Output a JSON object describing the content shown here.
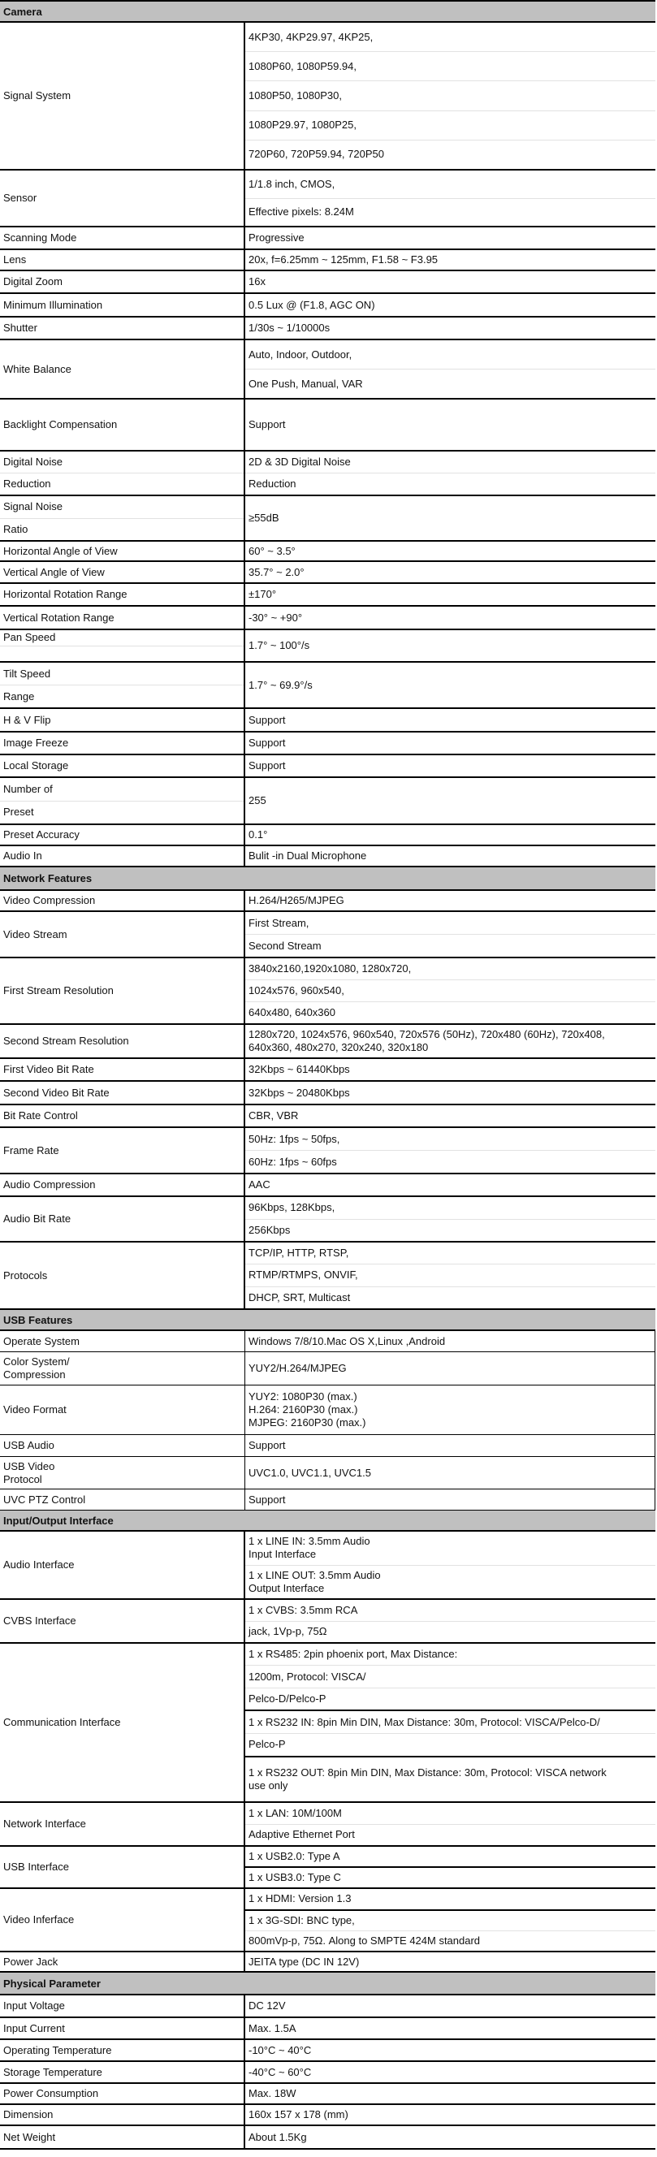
{
  "colors": {
    "section_header_bg": "#c0c0c0",
    "border": "#000000",
    "inner_divider": "#e2e2e2"
  },
  "sections": [
    {
      "title": "Camera",
      "rows": [
        {
          "label": [
            "Signal System"
          ],
          "value": [
            [
              "4KP30, 4KP29.97, 4KP25,",
              "1080P60, 1080P59.94,",
              "1080P50, 1080P30,",
              "1080P29.97, 1080P25,",
              "720P60, 720P59.94, 720P50"
            ]
          ]
        },
        {
          "label": [
            "Sensor"
          ],
          "value": [
            [
              "1/1.8 inch, CMOS,",
              "Effective pixels: 8.24M"
            ]
          ]
        },
        {
          "label": [
            "Scanning Mode"
          ],
          "value": [
            [
              "Progressive"
            ]
          ]
        },
        {
          "label": [
            "Lens"
          ],
          "value": [
            [
              "20x, f=6.25mm ~ 125mm, F1.58 ~ F3.95"
            ]
          ]
        },
        {
          "label": [
            "Digital Zoom"
          ],
          "value": [
            [
              "16x"
            ]
          ]
        },
        {
          "label": [
            "Minimum Illumination"
          ],
          "value": [
            [
              "0.5 Lux @ (F1.8, AGC ON)"
            ]
          ]
        },
        {
          "label": [
            "Shutter"
          ],
          "value": [
            [
              "1/30s ~ 1/10000s"
            ]
          ]
        },
        {
          "label": [
            "White Balance"
          ],
          "value": [
            [
              "Auto, Indoor, Outdoor,",
              "One Push, Manual, VAR"
            ]
          ]
        },
        {
          "label": [
            "Backlight Compensation"
          ],
          "value": [
            [
              "Support"
            ]
          ]
        },
        {
          "label": [
            "Digital Noise",
            "Reduction"
          ],
          "value": [
            [
              "2D & 3D Digital Noise",
              "Reduction"
            ]
          ]
        },
        {
          "label": [
            "Signal Noise",
            "Ratio"
          ],
          "value": [
            [
              "≥55dB"
            ]
          ]
        },
        {
          "label": [
            "Horizontal Angle of View"
          ],
          "value": [
            [
              "60° ~ 3.5°"
            ]
          ]
        },
        {
          "label": [
            "Vertical Angle of View"
          ],
          "value": [
            [
              "35.7° ~ 2.0°"
            ]
          ]
        },
        {
          "label": [
            "Horizontal Rotation Range"
          ],
          "value": [
            [
              "±170°"
            ]
          ]
        },
        {
          "label": [
            "Vertical Rotation Range"
          ],
          "value": [
            [
              "-30° ~ +90°"
            ]
          ]
        },
        {
          "label": [
            "Pan Speed",
            ""
          ],
          "value": [
            [
              "1.7° ~ 100°/s"
            ]
          ]
        },
        {
          "label": [
            "Tilt Speed",
            "Range"
          ],
          "value": [
            [
              "1.7° ~ 69.9°/s"
            ]
          ]
        },
        {
          "label": [
            "H & V Flip"
          ],
          "value": [
            [
              "Support"
            ]
          ]
        },
        {
          "label": [
            "Image Freeze"
          ],
          "value": [
            [
              "Support"
            ]
          ]
        },
        {
          "label": [
            "Local Storage"
          ],
          "value": [
            [
              "Support"
            ]
          ]
        },
        {
          "label": [
            "Number of",
            "Preset"
          ],
          "value": [
            [
              "255"
            ]
          ]
        },
        {
          "label": [
            "Preset Accuracy"
          ],
          "value": [
            [
              "0.1°"
            ]
          ]
        },
        {
          "label": [
            "Audio In"
          ],
          "value": [
            [
              "Bulit -in Dual Microphone"
            ]
          ]
        }
      ]
    },
    {
      "title": "Network Features",
      "rows": [
        {
          "label": [
            "Video Compression"
          ],
          "value": [
            [
              "H.264/H265/MJPEG"
            ]
          ]
        },
        {
          "label": [
            "Video Stream"
          ],
          "value": [
            [
              "First Stream,",
              "Second Stream"
            ]
          ]
        },
        {
          "label": [
            "First Stream Resolution"
          ],
          "value": [
            [
              "3840x2160,1920x1080, 1280x720,",
              "1024x576, 960x540,",
              "640x480, 640x360"
            ]
          ]
        },
        {
          "label": [
            "Second Stream Resolution"
          ],
          "value": [
            [
              "1280x720, 1024x576, 960x540, 720x576 (50Hz), 720x480 (60Hz), 720x408,\n640x360, 480x270, 320x240, 320x180"
            ]
          ]
        },
        {
          "label": [
            "First Video Bit Rate"
          ],
          "value": [
            [
              "32Kbps ~ 61440Kbps"
            ]
          ]
        },
        {
          "label": [
            "Second Video Bit Rate"
          ],
          "value": [
            [
              "32Kbps ~ 20480Kbps"
            ]
          ]
        },
        {
          "label": [
            "Bit Rate Control"
          ],
          "value": [
            [
              "CBR, VBR"
            ]
          ]
        },
        {
          "label": [
            "Frame Rate"
          ],
          "value": [
            [
              "50Hz: 1fps ~ 50fps,",
              "60Hz: 1fps ~ 60fps"
            ]
          ]
        },
        {
          "label": [
            "Audio Compression"
          ],
          "value": [
            [
              "AAC"
            ]
          ]
        },
        {
          "label": [
            "Audio Bit Rate"
          ],
          "value": [
            [
              "96Kbps, 128Kbps,",
              "256Kbps"
            ]
          ]
        },
        {
          "label": [
            "Protocols"
          ],
          "value": [
            [
              "TCP/IP, HTTP, RTSP,",
              "RTMP/RTMPS, ONVIF,",
              "DHCP, SRT, Multicast"
            ]
          ]
        }
      ]
    },
    {
      "title": "USB Features",
      "rows": [
        {
          "label": [
            "Operate System"
          ],
          "value": [
            [
              "Windows 7/8/10.Mac OS X,Linux ,Android"
            ]
          ]
        },
        {
          "label": [
            "Color System/\nCompression"
          ],
          "value": [
            [
              "YUY2/H.264/MJPEG"
            ]
          ]
        },
        {
          "label": [
            "Video Format"
          ],
          "value": [
            [
              "YUY2: 1080P30 (max.)\nH.264: 2160P30 (max.)\nMJPEG: 2160P30 (max.)"
            ]
          ]
        },
        {
          "label": [
            "USB Audio"
          ],
          "value": [
            [
              "Support"
            ]
          ]
        },
        {
          "label": [
            "USB Video\nProtocol"
          ],
          "value": [
            [
              "UVC1.0, UVC1.1, UVC1.5"
            ]
          ]
        },
        {
          "label": [
            "UVC PTZ Control"
          ],
          "value": [
            [
              "Support"
            ]
          ]
        }
      ]
    },
    {
      "title": "Input/Output Interface",
      "rows": [
        {
          "label": [
            "Audio Interface"
          ],
          "value": [
            [
              "1 x LINE IN: 3.5mm Audio\nInput Interface",
              "1 x LINE OUT: 3.5mm Audio\nOutput Interface"
            ]
          ]
        },
        {
          "label": [
            "CVBS Interface"
          ],
          "value": [
            [
              "1 x CVBS: 3.5mm RCA",
              "jack, 1Vp-p, 75Ω"
            ]
          ]
        },
        {
          "label": [
            "Communication Interface"
          ],
          "value": [
            [
              "1 x RS485: 2pin phoenix port, Max Distance:",
              "1200m, Protocol: VISCA/",
              "Pelco-D/Pelco-P"
            ],
            [
              "1 x RS232 IN: 8pin Min DIN, Max Distance: 30m, Protocol: VISCA/Pelco-D/",
              "Pelco-P"
            ],
            [
              "1 x RS232 OUT: 8pin Min DIN, Max Distance: 30m, Protocol: VISCA network\nuse only"
            ]
          ]
        },
        {
          "label": [
            "Network Interface"
          ],
          "value": [
            [
              "1 x LAN: 10M/100M",
              "Adaptive Ethernet Port"
            ]
          ]
        },
        {
          "label": [
            "USB Interface"
          ],
          "value": [
            [
              "1 x USB2.0: Type A"
            ],
            [
              "1 x USB3.0: Type C"
            ]
          ]
        },
        {
          "label": [
            "Video Inferface"
          ],
          "value": [
            [
              "1 x HDMI: Version 1.3"
            ],
            [
              "1 x 3G-SDI: BNC type,",
              "800mVp-p, 75Ω. Along to SMPTE 424M standard"
            ]
          ]
        },
        {
          "label": [
            "Power Jack"
          ],
          "value": [
            [
              "JEITA type (DC IN 12V)"
            ]
          ]
        }
      ]
    },
    {
      "title": "Physical Parameter",
      "rows": [
        {
          "label": [
            "Input Voltage"
          ],
          "value": [
            [
              "DC 12V"
            ]
          ]
        },
        {
          "label": [
            "Input Current"
          ],
          "value": [
            [
              "Max. 1.5A"
            ]
          ]
        },
        {
          "label": [
            "Operating Temperature"
          ],
          "value": [
            [
              "-10°C ~ 40°C"
            ]
          ]
        },
        {
          "label": [
            "Storage Temperature"
          ],
          "value": [
            [
              "-40°C ~ 60°C"
            ]
          ]
        },
        {
          "label": [
            "Power Consumption"
          ],
          "value": [
            [
              "Max. 18W"
            ]
          ]
        },
        {
          "label": [
            "Dimension"
          ],
          "value": [
            [
              "160x 157 x 178 (mm)"
            ]
          ]
        },
        {
          "label": [
            "Net Weight"
          ],
          "value": [
            [
              "About 1.5Kg"
            ]
          ]
        }
      ]
    }
  ]
}
